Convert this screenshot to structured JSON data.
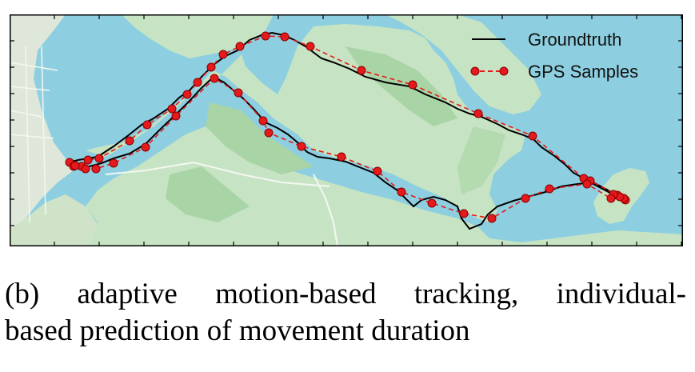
{
  "legend": {
    "groundtruth_label": "Groundtruth",
    "gps_samples_label": "GPS Samples"
  },
  "caption": {
    "words_line1": [
      "(b)",
      "adaptive",
      "motion-based",
      "tracking,",
      "individual-"
    ],
    "line2": "based prediction of movement duration"
  },
  "colors": {
    "water": "#8dcfe0",
    "land": "#c6e4c3",
    "land_dark": "#9fcf9f",
    "groundtruth": "#000000",
    "gps_line": "#e41a1c",
    "gps_marker": "#e41a1c",
    "frame": "#000000"
  },
  "icons": {
    "gps_marker": "red-circle-marker",
    "groundtruth_line": "black-solid-line",
    "gps_line": "red-dashed-line"
  }
}
